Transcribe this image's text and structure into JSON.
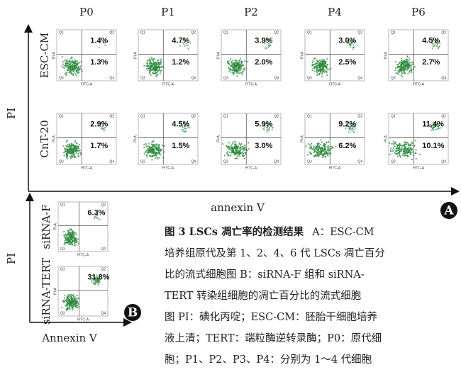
{
  "panel_a": {
    "label": "A",
    "y_axis": "PI",
    "x_axis": "annexin V",
    "columns": [
      "P0",
      "P1",
      "P2",
      "P4",
      "P6"
    ],
    "rows": [
      {
        "label": "ESC-CM",
        "plots": [
          {
            "upper": "1.4%",
            "lower": "1.3%"
          },
          {
            "upper": "4.7%",
            "lower": "1.2%"
          },
          {
            "upper": "3.9%",
            "lower": "2.0%"
          },
          {
            "upper": "3.0%",
            "lower": "2.5%"
          },
          {
            "upper": "4.5%",
            "lower": "2.7%"
          }
        ]
      },
      {
        "label": "CnT-20",
        "plots": [
          {
            "upper": "2.9%",
            "lower": "1.7%"
          },
          {
            "upper": "4.5%",
            "lower": "1.5%"
          },
          {
            "upper": "5.9%",
            "lower": "3.0%"
          },
          {
            "upper": "9.2%",
            "lower": "6.2%"
          },
          {
            "upper": "11.4%",
            "lower": "10.1%"
          }
        ]
      }
    ]
  },
  "plot_axes": {
    "x": "FITC-A",
    "y": "PI-A",
    "quadrants": [
      "Q1",
      "Q2",
      "Q3",
      "Q4"
    ]
  },
  "panel_b": {
    "label": "B",
    "y_axis": "PI",
    "x_axis": "Annexin V",
    "rows": [
      {
        "label": "siRNA-F",
        "value": "6.3%"
      },
      {
        "label": "siRNA-TERT",
        "value": "31.8%"
      }
    ]
  },
  "caption": {
    "title": "图 3  LSCs 凋亡率的检测结果",
    "lines": [
      "A：ESC-CM",
      "培养组原代及第 1、2、4、6 代 LSCs 凋亡百分",
      "比的流式细胞图   B：siRNA-F 组和 siRNA-",
      "TERT 转染组细胞的凋亡百分比的流式细胞",
      "图  PI：碘化丙啶；ESC-CM：胚胎干细胞培养",
      "液上清；TERT：端粒酶逆转录酶；P0：原代细",
      "胞；P1、P2、P3、P4：分别为 1～4 代细胞"
    ]
  }
}
